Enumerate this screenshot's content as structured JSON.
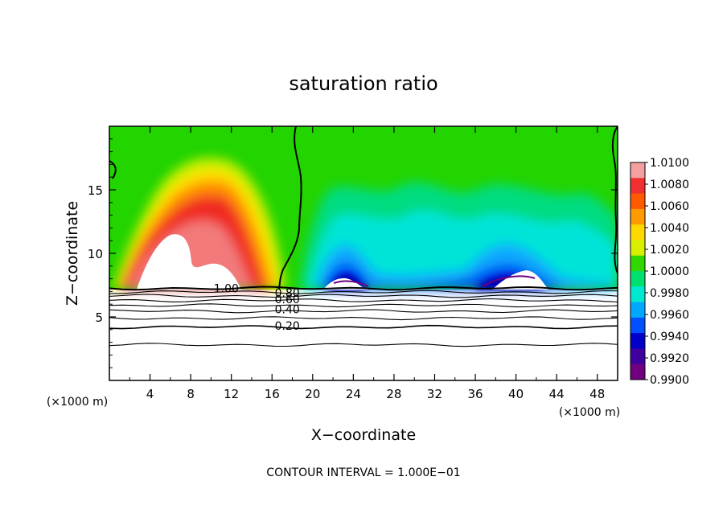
{
  "chart_data": {
    "type": "heatmap",
    "title": "saturation ratio",
    "xlabel": "X−coordinate",
    "ylabel": "Z−coordinate",
    "x_unit_left": "(×1000 m)",
    "x_unit_right": "(×1000 m)",
    "footer": "CONTOUR INTERVAL = 1.000E−01",
    "xlim": [
      0,
      50
    ],
    "ylim": [
      0,
      20
    ],
    "x_ticks": [
      "4",
      "8",
      "12",
      "16",
      "20",
      "24",
      "28",
      "32",
      "36",
      "40",
      "44",
      "48"
    ],
    "x_tick_values": [
      4,
      8,
      12,
      16,
      20,
      24,
      28,
      32,
      36,
      40,
      44,
      48
    ],
    "y_ticks": [
      "5",
      "10",
      "15"
    ],
    "y_tick_values": [
      5,
      10,
      15
    ],
    "colorbar": {
      "labels": [
        "1.0100",
        "1.0080",
        "1.0060",
        "1.0040",
        "1.0020",
        "1.0000",
        "0.9980",
        "0.9960",
        "0.9940",
        "0.9920",
        "0.9900"
      ],
      "values": [
        1.01,
        1.008,
        1.006,
        1.004,
        1.002,
        1.0,
        0.998,
        0.996,
        0.994,
        0.992,
        0.99
      ],
      "colors": [
        "#f4a0a0",
        "#f03030",
        "#ff5a00",
        "#ff9a00",
        "#ffd800",
        "#d8f000",
        "#30d800",
        "#00e070",
        "#00e8d0",
        "#00a8ff",
        "#0050ff",
        "#0000c8",
        "#4000a0",
        "#700080"
      ]
    },
    "contour_labels": [
      {
        "text": "1.00",
        "x": 11.5,
        "z": 7.25
      },
      {
        "text": "0.80",
        "x": 17.5,
        "z": 6.9
      },
      {
        "text": "0.60",
        "x": 17.5,
        "z": 6.4
      },
      {
        "text": "0.40",
        "x": 17.5,
        "z": 5.6
      },
      {
        "text": "0.20",
        "x": 17.5,
        "z": 4.3
      }
    ],
    "contour_levels_z": [
      7.25,
      6.95,
      6.65,
      6.3,
      5.9,
      5.45,
      4.9,
      4.2,
      2.8
    ],
    "cloud_base_z": 7.3,
    "supersaturated_plume": {
      "x_range": [
        0.5,
        17
      ],
      "peak_x": 10.5,
      "top_z": 17,
      "max": 1.01
    },
    "subsaturated_region": {
      "x_range": [
        17,
        50
      ],
      "min": 0.99,
      "min_near_z": 8
    }
  }
}
